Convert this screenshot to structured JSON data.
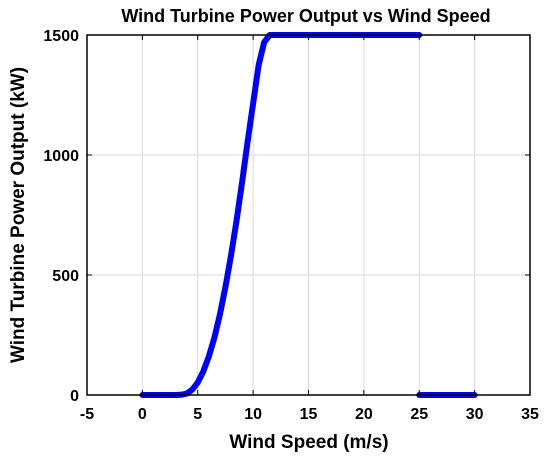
{
  "chart_data": {
    "type": "line",
    "title": "Wind Turbine Power Output vs Wind Speed",
    "xlabel": "Wind Speed (m/s)",
    "ylabel": "Wind Turbine Power Output (kW)",
    "xlim": [
      -5,
      35
    ],
    "ylim": [
      0,
      1500
    ],
    "xticks": [
      -5,
      0,
      5,
      10,
      15,
      20,
      25,
      30,
      35
    ],
    "yticks": [
      0,
      500,
      1000,
      1500
    ],
    "grid": true,
    "legend": "none",
    "series": [
      {
        "color": "#0000ff",
        "segments": [
          {
            "x": [
              0,
              1,
              2,
              3,
              3.5,
              4,
              4.5,
              5,
              5.5,
              6,
              6.5,
              7,
              7.5,
              8,
              8.5,
              9,
              9.5,
              10,
              10.5,
              11,
              11.5,
              12,
              13,
              14,
              15,
              16,
              17,
              18,
              19,
              20,
              21,
              22,
              23,
              24,
              25
            ],
            "y": [
              0,
              0,
              0,
              0,
              1,
              6,
              22,
              52,
              98,
              160,
              238,
              335,
              450,
              580,
              725,
              885,
              1055,
              1215,
              1375,
              1470,
              1500,
              1500,
              1500,
              1500,
              1500,
              1500,
              1500,
              1500,
              1500,
              1500,
              1500,
              1500,
              1500,
              1500,
              1500
            ]
          },
          {
            "x": [
              25,
              30
            ],
            "y": [
              0,
              0
            ]
          }
        ]
      }
    ]
  },
  "style": {
    "line_color": "#0000ff",
    "grid_color": "#d9d9d9",
    "axis_color": "#000000"
  }
}
